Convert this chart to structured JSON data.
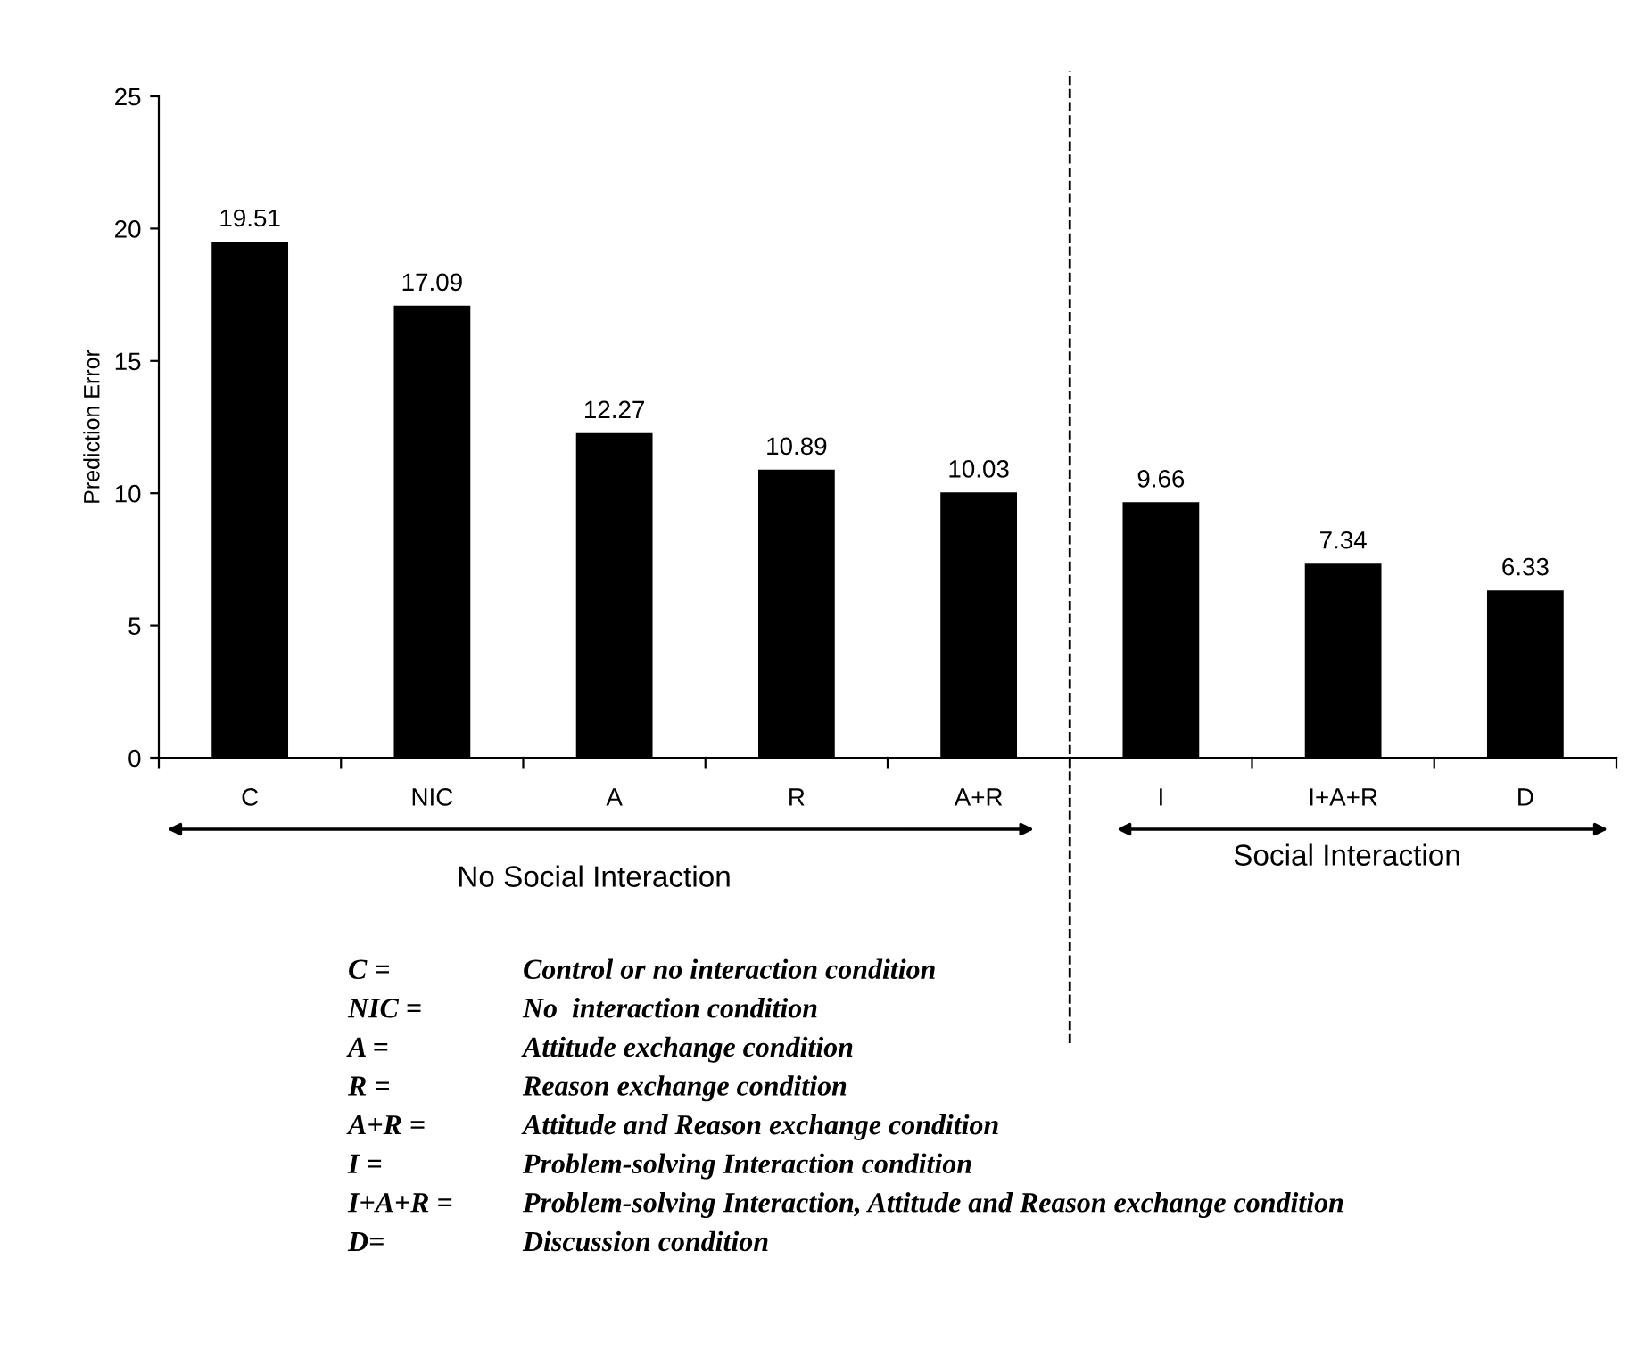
{
  "chart_data": {
    "type": "bar",
    "ylabel": "Prediction Error",
    "categories": [
      "C",
      "NIC",
      "A",
      "R",
      "A+R",
      "I",
      "I+A+R",
      "D"
    ],
    "values": [
      19.51,
      17.09,
      12.27,
      10.89,
      10.03,
      9.66,
      7.34,
      6.33
    ],
    "color": "#000000",
    "data_labels": true,
    "ylim": [
      0,
      25
    ],
    "yticks": [
      0,
      5,
      10,
      15,
      20,
      25
    ],
    "grid": false,
    "legend": false,
    "annotations": [
      "No Social Interaction",
      "Social Interaction",
      "C =",
      "Control or no interaction condition",
      "NIC =",
      "No  interaction condition",
      "A =",
      "Attitude exchange condition",
      "R =",
      "Reason exchange condition",
      "A+R =",
      "Attitude and Reason exchange condition",
      "I =",
      "Problem-solving Interaction condition",
      "I+A+R =",
      "Problem-solving Interaction, Attitude and Reason exchange condition",
      "D=",
      "Discussion condition"
    ]
  }
}
